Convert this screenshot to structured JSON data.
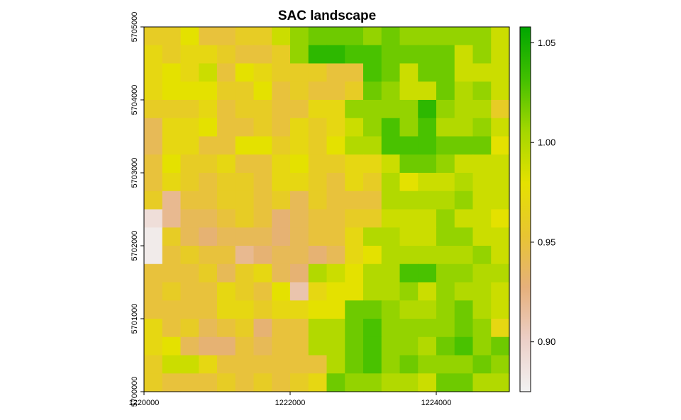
{
  "chart_data": {
    "type": "heatmap",
    "title": "SAC landscape",
    "xlabel": "",
    "ylabel": "",
    "xlim": [
      1220000,
      1225000
    ],
    "ylim": [
      1700000,
      5705000
    ],
    "x_ticks": [
      "1220000",
      "1222000",
      "1224000"
    ],
    "y_ticks": [
      "5700000",
      "5701000",
      "5702000",
      "5703000",
      "5704000",
      "5705000"
    ],
    "legend": {
      "position": "right",
      "range": [
        0.875,
        1.058
      ],
      "ticks": [
        "0.90",
        "0.95",
        "1.00",
        "1.05"
      ],
      "tick_values": [
        0.9,
        0.95,
        1.0,
        1.05
      ],
      "colors": [
        "#f2f2f2",
        "#eccfc7",
        "#e6b07b",
        "#e8c532",
        "#e5e100",
        "#a4d700",
        "#42c000",
        "#00a600"
      ]
    },
    "cell_size": 250,
    "grid": [
      [
        0.96,
        0.96,
        0.98,
        0.95,
        0.95,
        0.96,
        0.96,
        0.99,
        1.01,
        1.02,
        1.02,
        1.02,
        1.01,
        1.02,
        1.01,
        1.01,
        1.01,
        1.01,
        1.01,
        0.99
      ],
      [
        0.97,
        0.96,
        0.97,
        0.97,
        0.96,
        0.95,
        0.95,
        0.96,
        1.01,
        1.04,
        1.04,
        1.03,
        1.03,
        1.02,
        1.02,
        1.02,
        1.02,
        0.99,
        1.01,
        0.99
      ],
      [
        0.97,
        0.98,
        0.97,
        0.99,
        0.95,
        0.98,
        0.97,
        0.96,
        0.96,
        0.96,
        0.95,
        0.95,
        1.03,
        1.02,
        0.99,
        1.02,
        1.02,
        0.99,
        0.99,
        0.99
      ],
      [
        0.97,
        0.98,
        0.98,
        0.98,
        0.96,
        0.96,
        0.98,
        0.95,
        0.96,
        0.95,
        0.95,
        0.96,
        1.02,
        1.01,
        0.99,
        0.99,
        1.02,
        1.0,
        1.01,
        0.99
      ],
      [
        0.96,
        0.96,
        0.96,
        0.97,
        0.95,
        0.96,
        0.96,
        0.95,
        0.95,
        0.97,
        0.97,
        1.01,
        1.01,
        1.01,
        1.01,
        1.04,
        1.01,
        1.0,
        1.0,
        0.96
      ],
      [
        0.94,
        0.97,
        0.97,
        0.98,
        0.95,
        0.95,
        0.96,
        0.95,
        0.97,
        0.96,
        0.97,
        0.99,
        1.01,
        1.03,
        1.01,
        1.03,
        1.0,
        1.0,
        1.01,
        0.99
      ],
      [
        0.94,
        0.97,
        0.97,
        0.95,
        0.95,
        0.98,
        0.98,
        0.96,
        0.97,
        0.96,
        0.98,
        1.0,
        1.0,
        1.03,
        1.03,
        1.03,
        1.02,
        1.02,
        1.02,
        0.98
      ],
      [
        0.95,
        0.98,
        0.96,
        0.96,
        0.97,
        0.95,
        0.95,
        0.97,
        0.98,
        0.96,
        0.96,
        0.97,
        0.97,
        0.99,
        1.02,
        1.02,
        1.01,
        0.99,
        0.99,
        0.99
      ],
      [
        0.95,
        0.97,
        0.96,
        0.95,
        0.96,
        0.96,
        0.95,
        0.97,
        0.97,
        0.96,
        0.95,
        0.97,
        0.96,
        1.0,
        0.98,
        0.99,
        0.99,
        1.0,
        0.99,
        0.99
      ],
      [
        0.96,
        0.92,
        0.95,
        0.95,
        0.96,
        0.96,
        0.95,
        0.96,
        0.94,
        0.96,
        0.95,
        0.95,
        0.95,
        1.0,
        1.0,
        1.0,
        1.0,
        1.01,
        0.99,
        0.99
      ],
      [
        0.89,
        0.92,
        0.94,
        0.94,
        0.95,
        0.96,
        0.95,
        0.93,
        0.94,
        0.95,
        0.95,
        0.96,
        0.96,
        0.99,
        0.99,
        0.99,
        1.01,
        0.99,
        0.99,
        0.98
      ],
      [
        0.88,
        0.96,
        0.94,
        0.93,
        0.94,
        0.94,
        0.94,
        0.93,
        0.94,
        0.95,
        0.95,
        0.97,
        1.0,
        1.0,
        0.99,
        0.99,
        1.01,
        1.01,
        0.99,
        0.99
      ],
      [
        0.88,
        0.95,
        0.96,
        0.95,
        0.95,
        0.92,
        0.93,
        0.94,
        0.94,
        0.93,
        0.94,
        0.97,
        0.98,
        1.0,
        1.0,
        1.0,
        1.0,
        1.0,
        1.01,
        0.99
      ],
      [
        0.95,
        0.95,
        0.95,
        0.96,
        0.94,
        0.96,
        0.97,
        0.94,
        0.93,
        1.0,
        0.99,
        0.98,
        1.0,
        1.0,
        1.03,
        1.03,
        1.01,
        1.01,
        1.0,
        1.0
      ],
      [
        0.95,
        0.96,
        0.95,
        0.95,
        0.97,
        0.96,
        0.95,
        0.98,
        0.91,
        0.97,
        0.98,
        0.98,
        1.0,
        1.0,
        1.01,
        0.99,
        1.01,
        1.0,
        1.0,
        0.99
      ],
      [
        0.95,
        0.95,
        0.95,
        0.95,
        0.97,
        0.97,
        0.96,
        0.97,
        0.97,
        0.98,
        0.98,
        1.02,
        1.02,
        1.01,
        1.0,
        1.0,
        1.01,
        1.02,
        1.0,
        0.99
      ],
      [
        0.97,
        0.95,
        0.96,
        0.94,
        0.95,
        0.96,
        0.93,
        0.95,
        0.95,
        1.0,
        1.0,
        1.02,
        1.03,
        1.01,
        1.01,
        1.01,
        1.01,
        1.02,
        1.01,
        0.97
      ],
      [
        0.97,
        0.98,
        0.94,
        0.93,
        0.93,
        0.95,
        0.94,
        0.95,
        0.95,
        1.0,
        1.0,
        1.02,
        1.03,
        1.01,
        1.01,
        1.0,
        1.02,
        1.03,
        1.01,
        1.02
      ],
      [
        0.96,
        0.99,
        0.99,
        0.97,
        0.95,
        0.95,
        0.95,
        0.95,
        0.95,
        0.95,
        1.0,
        1.02,
        1.03,
        1.01,
        1.02,
        1.01,
        1.01,
        1.01,
        1.02,
        1.01
      ],
      [
        0.96,
        0.95,
        0.95,
        0.95,
        0.96,
        0.95,
        0.96,
        0.95,
        0.96,
        0.97,
        1.02,
        1.01,
        1.01,
        1.0,
        1.0,
        0.99,
        1.02,
        1.02,
        1.0,
        1.0
      ]
    ]
  }
}
